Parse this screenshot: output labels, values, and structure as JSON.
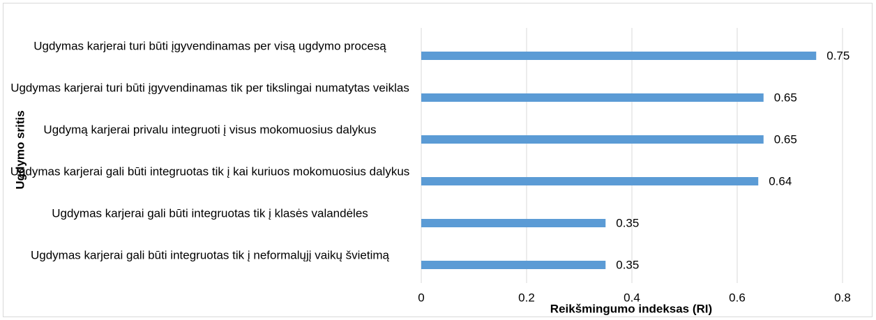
{
  "chart_data": {
    "type": "bar",
    "orientation": "horizontal",
    "x_label": "Reikšmingumo indeksas (RI)",
    "y_label": "Ugdymo sritis",
    "categories": [
      "Ugdymas karjerai turi būti įgyvendinamas per visą ugdymo procesą",
      "Ugdymas karjerai turi būti įgyvendinamas tik per tikslingai numatytas veiklas",
      "Ugdymą karjerai privalu integruoti į visus mokomuosius dalykus",
      "Ugdymas karjerai gali būti integruotas tik į kai kuriuos mokomuosius dalykus",
      "Ugdymas karjerai gali būti integruotas tik į klasės valandėles",
      "Ugdymas karjerai gali būti integruotas tik į neformalųjį vaikų švietimą"
    ],
    "values": [
      0.75,
      0.65,
      0.65,
      0.64,
      0.35,
      0.35
    ],
    "color": "#5b9bd5",
    "xlim": [
      0,
      0.8
    ],
    "xticks": [
      0,
      0.2,
      0.4,
      0.6,
      0.8
    ],
    "grid": true
  }
}
